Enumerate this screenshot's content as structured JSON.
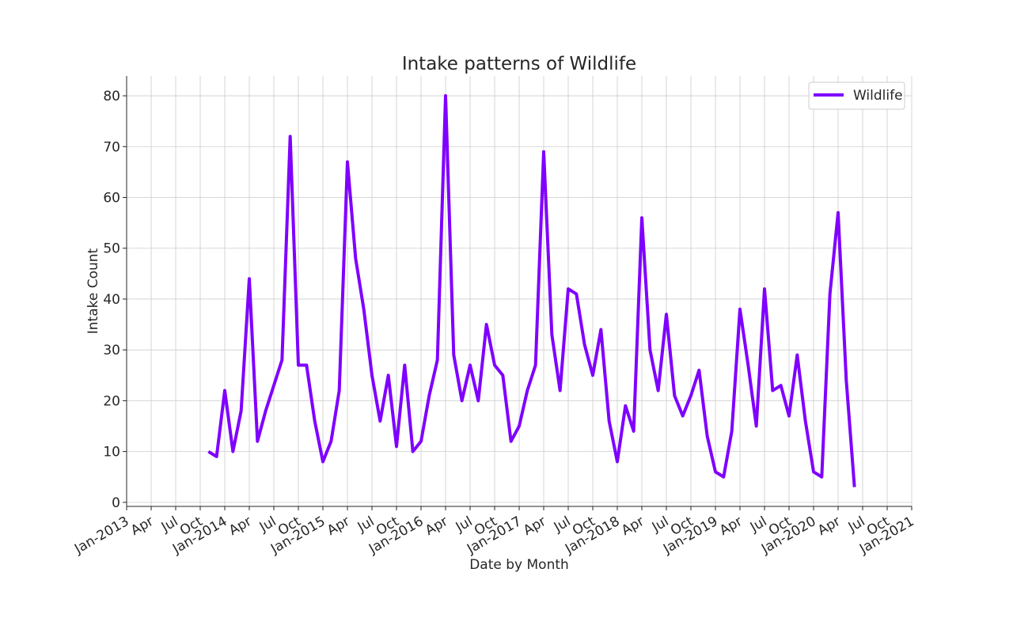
{
  "chart_data": {
    "type": "line",
    "title": "Intake patterns of Wildlife",
    "x_label": "Date by Month",
    "y_label": "Intake Count",
    "x": [
      "2013-11",
      "2013-12",
      "2014-01",
      "2014-02",
      "2014-03",
      "2014-04",
      "2014-05",
      "2014-06",
      "2014-07",
      "2014-08",
      "2014-09",
      "2014-10",
      "2014-11",
      "2014-12",
      "2015-01",
      "2015-02",
      "2015-03",
      "2015-04",
      "2015-05",
      "2015-06",
      "2015-07",
      "2015-08",
      "2015-09",
      "2015-10",
      "2015-11",
      "2015-12",
      "2016-01",
      "2016-02",
      "2016-03",
      "2016-04",
      "2016-05",
      "2016-06",
      "2016-07",
      "2016-08",
      "2016-09",
      "2016-10",
      "2016-11",
      "2016-12",
      "2017-01",
      "2017-02",
      "2017-03",
      "2017-04",
      "2017-05",
      "2017-06",
      "2017-07",
      "2017-08",
      "2017-09",
      "2017-10",
      "2017-11",
      "2017-12",
      "2018-01",
      "2018-02",
      "2018-03",
      "2018-04",
      "2018-05",
      "2018-06",
      "2018-07",
      "2018-08",
      "2018-09",
      "2018-10",
      "2018-11",
      "2018-12",
      "2019-01",
      "2019-02",
      "2019-03",
      "2019-04",
      "2019-05",
      "2019-06",
      "2019-07",
      "2019-08",
      "2019-09",
      "2019-10",
      "2019-11",
      "2019-12",
      "2020-01",
      "2020-02",
      "2020-03",
      "2020-04",
      "2020-05",
      "2020-06"
    ],
    "series": [
      {
        "name": "Wildlife",
        "color": "#7f00ff",
        "values": [
          10,
          9,
          22,
          10,
          18,
          44,
          12,
          18,
          23,
          28,
          72,
          27,
          27,
          16,
          8,
          12,
          22,
          67,
          48,
          38,
          25,
          16,
          25,
          11,
          27,
          10,
          12,
          21,
          28,
          80,
          29,
          20,
          27,
          20,
          35,
          27,
          25,
          12,
          15,
          22,
          27,
          69,
          33,
          22,
          42,
          41,
          31,
          25,
          34,
          16,
          8,
          19,
          14,
          56,
          30,
          22,
          37,
          21,
          17,
          21,
          26,
          13,
          6,
          5,
          14,
          38,
          27,
          15,
          42,
          22,
          23,
          17,
          29,
          16,
          6,
          5,
          41,
          57,
          24,
          3
        ]
      }
    ],
    "xlim": [
      "2013-01",
      "2021-01"
    ],
    "xticks": [
      {
        "value": "2013-01",
        "label": "Jan-2013"
      },
      {
        "value": "2013-04",
        "label": "Apr"
      },
      {
        "value": "2013-07",
        "label": "Jul"
      },
      {
        "value": "2013-10",
        "label": "Oct"
      },
      {
        "value": "2014-01",
        "label": "Jan-2014"
      },
      {
        "value": "2014-04",
        "label": "Apr"
      },
      {
        "value": "2014-07",
        "label": "Jul"
      },
      {
        "value": "2014-10",
        "label": "Oct"
      },
      {
        "value": "2015-01",
        "label": "Jan-2015"
      },
      {
        "value": "2015-04",
        "label": "Apr"
      },
      {
        "value": "2015-07",
        "label": "Jul"
      },
      {
        "value": "2015-10",
        "label": "Oct"
      },
      {
        "value": "2016-01",
        "label": "Jan-2016"
      },
      {
        "value": "2016-04",
        "label": "Apr"
      },
      {
        "value": "2016-07",
        "label": "Jul"
      },
      {
        "value": "2016-10",
        "label": "Oct"
      },
      {
        "value": "2017-01",
        "label": "Jan-2017"
      },
      {
        "value": "2017-04",
        "label": "Apr"
      },
      {
        "value": "2017-07",
        "label": "Jul"
      },
      {
        "value": "2017-10",
        "label": "Oct"
      },
      {
        "value": "2018-01",
        "label": "Jan-2018"
      },
      {
        "value": "2018-04",
        "label": "Apr"
      },
      {
        "value": "2018-07",
        "label": "Jul"
      },
      {
        "value": "2018-10",
        "label": "Oct"
      },
      {
        "value": "2019-01",
        "label": "Jan-2019"
      },
      {
        "value": "2019-04",
        "label": "Apr"
      },
      {
        "value": "2019-07",
        "label": "Jul"
      },
      {
        "value": "2019-10",
        "label": "Oct"
      },
      {
        "value": "2020-01",
        "label": "Jan-2020"
      },
      {
        "value": "2020-04",
        "label": "Apr"
      },
      {
        "value": "2020-07",
        "label": "Jul"
      },
      {
        "value": "2020-10",
        "label": "Oct"
      },
      {
        "value": "2021-01",
        "label": "Jan-2021"
      }
    ],
    "ylim": [
      -0.8,
      83.9
    ],
    "yticks": [
      0,
      10,
      20,
      30,
      40,
      50,
      60,
      70,
      80
    ],
    "grid": true,
    "legend": "upper-right"
  }
}
